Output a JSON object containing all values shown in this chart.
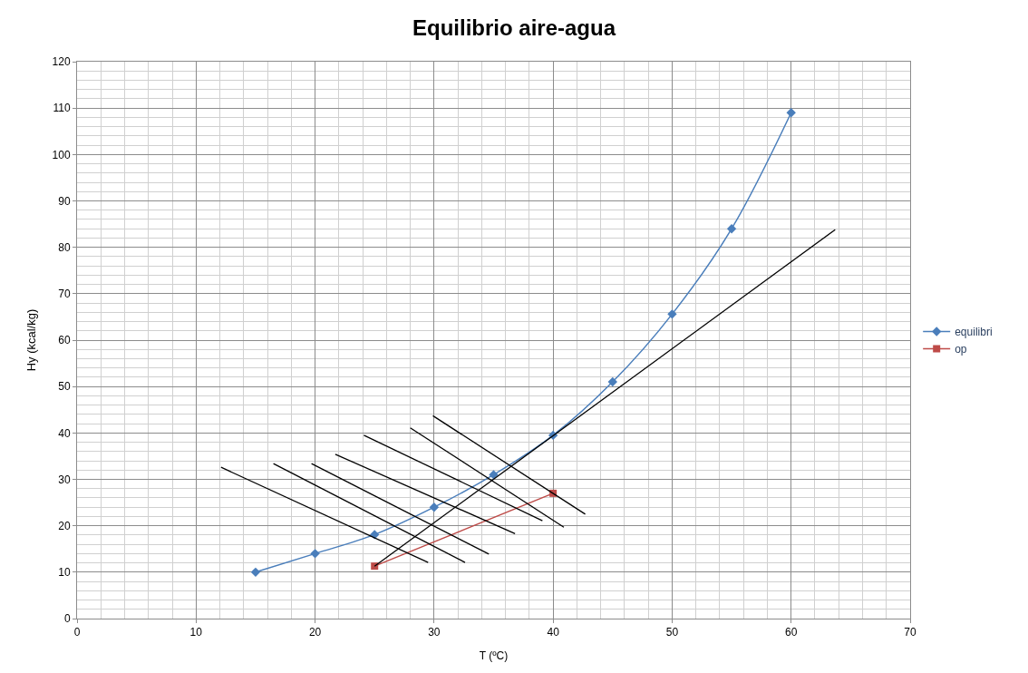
{
  "chart_data": {
    "type": "line",
    "title": "Equilibrio aire-agua",
    "xlabel": "T (ºC)",
    "ylabel": "Hy (kcal/kg)",
    "xlim": [
      0,
      70
    ],
    "xticks": [
      0,
      10,
      20,
      30,
      40,
      50,
      60,
      70
    ],
    "ylim": [
      0,
      120
    ],
    "yticks": [
      0,
      10,
      20,
      30,
      40,
      50,
      60,
      70,
      80,
      90,
      100,
      110,
      120
    ],
    "grid": true,
    "legend": "right",
    "series": [
      {
        "name": "equilibri",
        "color": "#4a7ebb",
        "marker": "diamond",
        "x": [
          15,
          20,
          25,
          30,
          35,
          40,
          45,
          50,
          55,
          60
        ],
        "values": [
          10,
          14,
          18.1,
          24,
          31,
          39.5,
          51,
          65.6,
          84,
          109
        ]
      },
      {
        "name": "op",
        "color": "#be4b48",
        "marker": "square",
        "x": [
          25,
          40
        ],
        "values": [
          11.3,
          27
        ]
      },
      {
        "color": "#000000",
        "marker": "none",
        "x": [
          25,
          63.7
        ],
        "values": [
          11.3,
          83.8
        ]
      },
      {
        "color": "#000000",
        "marker": "none",
        "x": [
          12.1,
          29.5
        ],
        "values": [
          32.6,
          12.1
        ]
      },
      {
        "color": "#000000",
        "marker": "none",
        "x": [
          16.5,
          32.6
        ],
        "values": [
          33.4,
          12.1
        ]
      },
      {
        "color": "#000000",
        "marker": "none",
        "x": [
          19.7,
          34.6
        ],
        "values": [
          33.4,
          13.9
        ]
      },
      {
        "color": "#000000",
        "marker": "none",
        "x": [
          21.7,
          36.8
        ],
        "values": [
          35.4,
          18.3
        ]
      },
      {
        "color": "#000000",
        "marker": "none",
        "x": [
          24.1,
          39.1
        ],
        "values": [
          39.5,
          21.1
        ]
      },
      {
        "color": "#000000",
        "marker": "none",
        "x": [
          28.0,
          40.9
        ],
        "values": [
          41.1,
          19.7
        ]
      },
      {
        "color": "#000000",
        "marker": "none",
        "x": [
          29.9,
          42.7
        ],
        "values": [
          43.7,
          22.5
        ]
      }
    ]
  }
}
